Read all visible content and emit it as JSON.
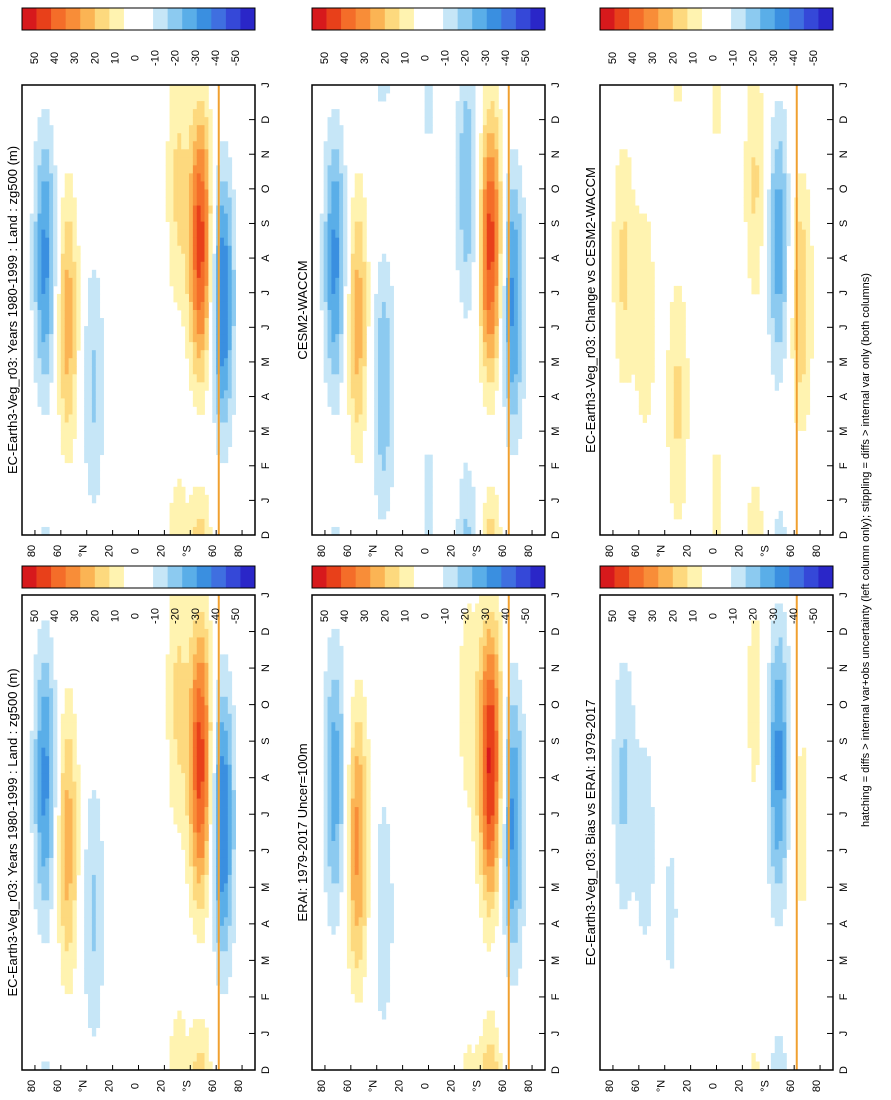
{
  "figure": {
    "footnote": "hatching = diffs > internal var+obs uncertainty (left column only); stippling = diffs > internal var only (both columns)"
  },
  "colorbar": {
    "labels": [
      "50",
      "40",
      "30",
      "20",
      "10",
      "0",
      "-10",
      "-20",
      "-30",
      "-40",
      "-50"
    ],
    "colors": [
      "#d7191c",
      "#e8401a",
      "#f46d29",
      "#f88d38",
      "#fbb454",
      "#fdd97e",
      "#fff3b0",
      "#ffffff",
      "#ffffff",
      "#c6e6f7",
      "#8ccaf0",
      "#5aaee8",
      "#3a8fe0",
      "#3f6fe0",
      "#3548d8",
      "#2a26c8"
    ]
  },
  "panels": [
    {
      "id": "p1",
      "title": "EC-Earth3-Veg_r03: Years 1980-1999 : Land : zg500 (m)"
    },
    {
      "id": "p2",
      "title": "EC-Earth3-Veg_r03: Years 1980-1999 : Land : zg500 (m)"
    },
    {
      "id": "p3",
      "title": "ERAI: 1979-2017 Uncer=100m"
    },
    {
      "id": "p4",
      "title": "CESM2-WACCM"
    },
    {
      "id": "p5",
      "title": "EC-Earth3-Veg_r03: Bias vs ERAI: 1979-2017"
    },
    {
      "id": "p6",
      "title": "EC-Earth3-Veg_r03: Change vs CESM2-WACCM"
    }
  ],
  "chart_data": {
    "type": "heatmap",
    "description": "Latitude-month Hovmoller of zg500 anomalies (m), land only",
    "x": {
      "label": "",
      "ticks": [
        "D",
        "J",
        "F",
        "M",
        "A",
        "M",
        "J",
        "J",
        "A",
        "S",
        "O",
        "N",
        "D",
        "J"
      ]
    },
    "y": {
      "label": "",
      "range": [
        -90,
        90
      ],
      "ticks": [
        "80",
        "60",
        "°N",
        "20",
        "0",
        "20",
        "°S",
        "60",
        "80"
      ]
    },
    "levels": [
      -50,
      -40,
      -30,
      -20,
      -10,
      0,
      10,
      20,
      30,
      40,
      50
    ],
    "panels": [
      {
        "name": "EC-Earth3-Veg_r03",
        "bands": [
          {
            "lat": 72,
            "amp": -30
          },
          {
            "lat": 55,
            "amp": 25
          },
          {
            "lat": 35,
            "amp": -15
          },
          {
            "lat": -30,
            "amp": 15
          },
          {
            "lat": -48,
            "amp": 45
          },
          {
            "lat": -65,
            "amp": -35
          }
        ]
      },
      {
        "name": "EC-Earth3-Veg_r03",
        "bands": [
          {
            "lat": 72,
            "amp": -30
          },
          {
            "lat": 55,
            "amp": 25
          },
          {
            "lat": 35,
            "amp": -15
          },
          {
            "lat": -30,
            "amp": 15
          },
          {
            "lat": -48,
            "amp": 45
          },
          {
            "lat": -65,
            "amp": -35
          }
        ]
      },
      {
        "name": "ERAI",
        "bands": [
          {
            "lat": 72,
            "amp": -25
          },
          {
            "lat": 55,
            "amp": 30
          },
          {
            "lat": 35,
            "amp": -12
          },
          {
            "lat": -30,
            "amp": 10
          },
          {
            "lat": -48,
            "amp": 50
          },
          {
            "lat": -65,
            "amp": -30
          }
        ]
      },
      {
        "name": "CESM2-WACCM",
        "bands": [
          {
            "lat": 72,
            "amp": -30
          },
          {
            "lat": 55,
            "amp": 25
          },
          {
            "lat": 35,
            "amp": -20
          },
          {
            "lat": 0,
            "amp": -8
          },
          {
            "lat": -30,
            "amp": -20
          },
          {
            "lat": -48,
            "amp": 45
          },
          {
            "lat": -65,
            "amp": -30
          }
        ]
      },
      {
        "name": "Bias vs ERAI",
        "bands": [
          {
            "lat": 72,
            "amp": -15
          },
          {
            "lat": 55,
            "amp": -10
          },
          {
            "lat": 35,
            "amp": -8
          },
          {
            "lat": -30,
            "amp": 10
          },
          {
            "lat": -48,
            "amp": -30
          },
          {
            "lat": -65,
            "amp": 10
          }
        ]
      },
      {
        "name": "Change vs CESM2-WACCM",
        "bands": [
          {
            "lat": 72,
            "amp": 15
          },
          {
            "lat": 55,
            "amp": 12
          },
          {
            "lat": 30,
            "amp": 15
          },
          {
            "lat": 0,
            "amp": 8
          },
          {
            "lat": -30,
            "amp": 15
          },
          {
            "lat": -48,
            "amp": -25
          },
          {
            "lat": -65,
            "amp": 20
          }
        ]
      }
    ]
  }
}
